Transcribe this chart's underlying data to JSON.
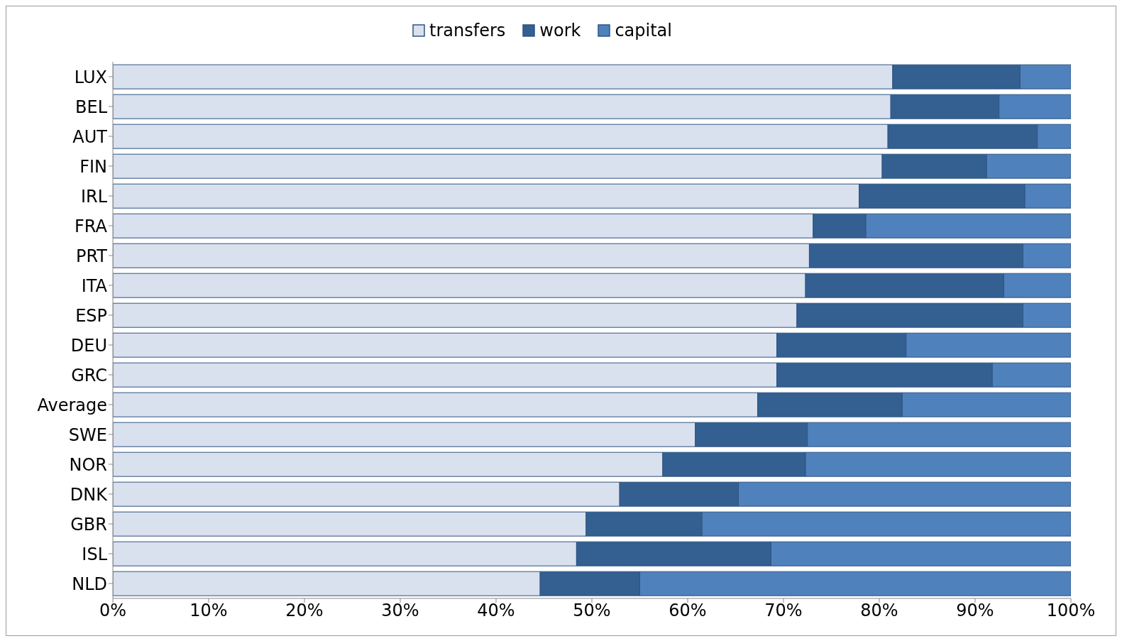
{
  "chart_data": {
    "type": "bar",
    "orientation": "horizontal",
    "stacked": true,
    "legend": "top",
    "grid": false,
    "categories": [
      "LUX",
      "BEL",
      "AUT",
      "FIN",
      "IRL",
      "FRA",
      "PRT",
      "ITA",
      "ESP",
      "DEU",
      "GRC",
      "Average",
      "SWE",
      "NOR",
      "DNK",
      "GBR",
      "ISL",
      "NLD"
    ],
    "series": [
      {
        "name": "transfers",
        "color": "#d9e0ee",
        "values": [
          81.4,
          81.2,
          80.9,
          80.3,
          77.9,
          73.1,
          72.7,
          72.3,
          71.4,
          69.3,
          69.3,
          67.3,
          60.8,
          57.4,
          52.9,
          49.4,
          48.4,
          44.6
        ]
      },
      {
        "name": "work",
        "color": "#335f91",
        "values": [
          13.3,
          11.3,
          15.6,
          10.9,
          17.3,
          5.5,
          22.3,
          20.7,
          23.6,
          13.5,
          22.5,
          15.1,
          11.7,
          14.9,
          12.4,
          12.1,
          20.3,
          10.4
        ]
      },
      {
        "name": "capital",
        "color": "#4f81bd",
        "values": [
          5.3,
          7.5,
          3.5,
          8.8,
          4.8,
          21.4,
          5.0,
          7.0,
          5.0,
          17.2,
          8.2,
          17.6,
          27.5,
          27.7,
          34.7,
          38.5,
          31.3,
          45.0
        ]
      }
    ],
    "xlim": [
      0,
      100
    ],
    "xticks": [
      {
        "value": 0,
        "label": "0%"
      },
      {
        "value": 10,
        "label": "10%"
      },
      {
        "value": 20,
        "label": "20%"
      },
      {
        "value": 30,
        "label": "30%"
      },
      {
        "value": 40,
        "label": "40%"
      },
      {
        "value": 50,
        "label": "50%"
      },
      {
        "value": 60,
        "label": "60%"
      },
      {
        "value": 70,
        "label": "70%"
      },
      {
        "value": 80,
        "label": "80%"
      },
      {
        "value": 90,
        "label": "90%"
      },
      {
        "value": 100,
        "label": "100%"
      }
    ]
  }
}
